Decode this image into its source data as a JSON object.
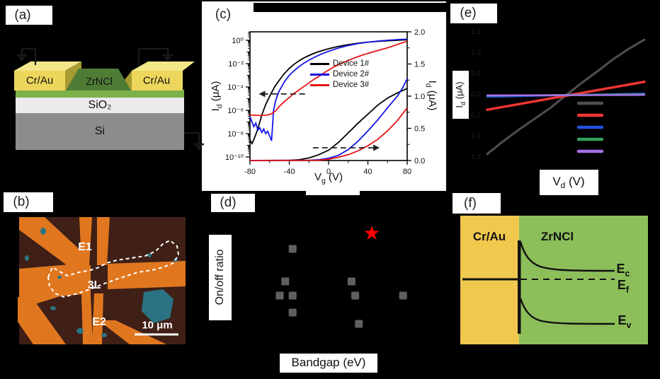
{
  "panels": {
    "a": {
      "label": "(a)",
      "schematic": {
        "electrode_label": "Cr/Au",
        "channel_label": "ZrNCl",
        "oxide_label": "SiO₂",
        "substrate_label": "Si",
        "colors": {
          "electrode_front": "#edd65c",
          "electrode_top": "#f2e88a",
          "electrode_side": "#a89b31",
          "channel": "#4f7c34",
          "film": "#7db149",
          "oxide": "#ebebeb",
          "substrate": "#8c8c8c"
        }
      }
    },
    "b": {
      "label": "(b)",
      "micrograph": {
        "electrode1_label": "E1",
        "flake_label": "3L",
        "electrode2_label": "E2",
        "scalebar_label": "10 μm",
        "colors": {
          "background": "#3f1f16",
          "electrode": "#e0771f",
          "flake": "#2b7383",
          "outline": "#ffffff"
        }
      }
    },
    "c": {
      "label": "(c)",
      "ylabel": {
        "main": "I",
        "sub": "d",
        "unit": " (μA)"
      },
      "ylabel_right": {
        "main": "I",
        "sub": "d",
        "unit": " (μA)"
      },
      "xlabel": {
        "main": "V",
        "sub": "g",
        "unit": " (V)"
      }
    },
    "d": {
      "label": "(d)",
      "ylabel": "On/off ratio",
      "xlabel": "Bandgap (eV)"
    },
    "e": {
      "label": "(e)",
      "ylabel": {
        "main": "I",
        "sub": "d",
        "unit": " (μA)"
      },
      "xlabel": {
        "main": "V",
        "sub": "d",
        "unit": " (V)"
      }
    },
    "f": {
      "label": "(f)",
      "metal_label": "Cr/Au",
      "semiconductor_label": "ZrNCl",
      "bands": {
        "conduction": {
          "main": "E",
          "sub": "c"
        },
        "fermi": {
          "main": "E",
          "sub": "f"
        },
        "valence": {
          "main": "E",
          "sub": "v"
        }
      },
      "colors": {
        "metal": "#f0c84e",
        "semiconductor": "#8cbe5a"
      }
    }
  },
  "chart_data": [
    {
      "id": "transfer-curves",
      "panel": "c",
      "type": "line",
      "xlabel": "V_g (V)",
      "xlim": [
        -80,
        80
      ],
      "axes": {
        "x": {
          "ticks": [
            "-80",
            "-40",
            "0",
            "40",
            "80"
          ],
          "tick_values": [
            -80,
            -40,
            0,
            40,
            80
          ],
          "minor_values": [
            -60,
            -20,
            20,
            60
          ]
        },
        "left": {
          "label": "I_d (μA), log scale",
          "ticks": [
            "10⁰",
            "10⁻²",
            "10⁻⁴",
            "10⁻⁶",
            "10⁻⁸",
            "10⁻¹⁰"
          ],
          "tick_values": [
            0,
            -2,
            -4,
            -6,
            -8,
            -10
          ],
          "lim_log10": [
            -10,
            0.8
          ]
        },
        "right": {
          "label": "I_d (μA), linear scale",
          "ticks": [
            "2.0",
            "1.5",
            "1.0",
            "0.5",
            "0.0"
          ],
          "tick_values": [
            2.0,
            1.5,
            1.0,
            0.5,
            0.0
          ],
          "lim": [
            0,
            2
          ]
        }
      },
      "legend": [
        {
          "label": "Device 1#",
          "color": "#000000"
        },
        {
          "label": "Device 2#",
          "color": "#1414e6"
        },
        {
          "label": "Device 3#",
          "color": "#e61414"
        }
      ],
      "series_log10": [
        {
          "name": "Device 1#",
          "color": "#000000",
          "points": [
            [
              -80,
              -8.55
            ],
            [
              -78,
              -8.85
            ],
            [
              -76,
              -8.5
            ],
            [
              -72,
              -7.6
            ],
            [
              -68,
              -6.4
            ],
            [
              -64,
              -5.5
            ],
            [
              -60,
              -4.8
            ],
            [
              -55,
              -4.0
            ],
            [
              -50,
              -3.4
            ],
            [
              -45,
              -2.85
            ],
            [
              -40,
              -2.4
            ],
            [
              -35,
              -2.05
            ],
            [
              -30,
              -1.75
            ],
            [
              -25,
              -1.5
            ],
            [
              -20,
              -1.3
            ],
            [
              -15,
              -1.12
            ],
            [
              -10,
              -0.97
            ],
            [
              -5,
              -0.84
            ],
            [
              0,
              -0.72
            ],
            [
              10,
              -0.52
            ],
            [
              20,
              -0.37
            ],
            [
              30,
              -0.25
            ],
            [
              40,
              -0.16
            ],
            [
              50,
              -0.09
            ],
            [
              60,
              -0.04
            ],
            [
              70,
              0.0
            ],
            [
              80,
              0.05
            ]
          ]
        },
        {
          "name": "Device 2#",
          "color": "#1414e6",
          "points": [
            [
              -80,
              -6.55
            ],
            [
              -78,
              -7.0
            ],
            [
              -76,
              -7.4
            ],
            [
              -74,
              -7.1
            ],
            [
              -72,
              -7.7
            ],
            [
              -70,
              -7.5
            ],
            [
              -68,
              -7.9
            ],
            [
              -66,
              -7.6
            ],
            [
              -64,
              -8.0
            ],
            [
              -62,
              -7.8
            ],
            [
              -60,
              -8.2
            ],
            [
              -58,
              -8.6
            ],
            [
              -57,
              -7.3
            ],
            [
              -56,
              -6.0
            ],
            [
              -54,
              -5.2
            ],
            [
              -52,
              -4.7
            ],
            [
              -50,
              -4.3
            ],
            [
              -45,
              -3.55
            ],
            [
              -40,
              -3.0
            ],
            [
              -35,
              -2.6
            ],
            [
              -30,
              -2.25
            ],
            [
              -25,
              -1.95
            ],
            [
              -20,
              -1.7
            ],
            [
              -15,
              -1.48
            ],
            [
              -10,
              -1.28
            ],
            [
              -5,
              -1.1
            ],
            [
              0,
              -0.94
            ],
            [
              10,
              -0.66
            ],
            [
              20,
              -0.45
            ],
            [
              30,
              -0.28
            ],
            [
              40,
              -0.16
            ],
            [
              50,
              -0.07
            ],
            [
              60,
              0.0
            ],
            [
              70,
              0.06
            ],
            [
              80,
              0.1
            ]
          ]
        },
        {
          "name": "Device 3#",
          "color": "#e61414",
          "points": [
            [
              -80,
              -6.4
            ],
            [
              -70,
              -6.45
            ],
            [
              -62,
              -6.4
            ],
            [
              -58,
              -6.3
            ],
            [
              -54,
              -6.05
            ],
            [
              -50,
              -5.65
            ],
            [
              -45,
              -5.25
            ],
            [
              -40,
              -4.9
            ],
            [
              -35,
              -4.55
            ],
            [
              -30,
              -4.25
            ],
            [
              -25,
              -3.95
            ],
            [
              -20,
              -3.65
            ],
            [
              -15,
              -3.35
            ],
            [
              -10,
              -3.1
            ],
            [
              -5,
              -2.8
            ],
            [
              0,
              -2.55
            ],
            [
              5,
              -2.3
            ],
            [
              10,
              -2.1
            ],
            [
              15,
              -1.9
            ],
            [
              20,
              -1.72
            ],
            [
              25,
              -1.55
            ],
            [
              30,
              -1.4
            ],
            [
              35,
              -1.25
            ],
            [
              40,
              -1.12
            ],
            [
              45,
              -1.0
            ],
            [
              50,
              -0.88
            ],
            [
              55,
              -0.76
            ],
            [
              60,
              -0.64
            ],
            [
              65,
              -0.5
            ],
            [
              70,
              -0.36
            ],
            [
              75,
              -0.22
            ],
            [
              80,
              -0.08
            ]
          ]
        }
      ],
      "series_linear": [
        {
          "name": "Device 1#",
          "color": "#000000",
          "points": [
            [
              -80,
              0
            ],
            [
              -40,
              0.004
            ],
            [
              -30,
              0.012
            ],
            [
              -20,
              0.04
            ],
            [
              -10,
              0.09
            ],
            [
              0,
              0.16
            ],
            [
              10,
              0.28
            ],
            [
              20,
              0.43
            ],
            [
              30,
              0.58
            ],
            [
              40,
              0.72
            ],
            [
              50,
              0.86
            ],
            [
              60,
              0.97
            ],
            [
              70,
              1.05
            ],
            [
              80,
              1.12
            ]
          ]
        },
        {
          "name": "Device 2#",
          "color": "#1414e6",
          "points": [
            [
              -80,
              0
            ],
            [
              -20,
              0.003
            ],
            [
              -10,
              0.012
            ],
            [
              0,
              0.035
            ],
            [
              10,
              0.08
            ],
            [
              20,
              0.17
            ],
            [
              30,
              0.3
            ],
            [
              40,
              0.46
            ],
            [
              50,
              0.63
            ],
            [
              60,
              0.82
            ],
            [
              70,
              1.0
            ],
            [
              75,
              1.12
            ],
            [
              80,
              1.27
            ]
          ]
        },
        {
          "name": "Device 3#",
          "color": "#e61414",
          "points": [
            [
              -80,
              0
            ],
            [
              -10,
              0.004
            ],
            [
              0,
              0.02
            ],
            [
              10,
              0.05
            ],
            [
              20,
              0.09
            ],
            [
              30,
              0.15
            ],
            [
              40,
              0.23
            ],
            [
              50,
              0.33
            ],
            [
              60,
              0.46
            ],
            [
              70,
              0.62
            ],
            [
              80,
              0.82
            ]
          ]
        }
      ],
      "annotations": {
        "left_arrow": {
          "y_log10": -4.6,
          "x_from": -24,
          "x_to": -71
        },
        "right_arrow": {
          "y_linear": 0.198,
          "x_from": -16,
          "x_to": 52
        }
      }
    },
    {
      "id": "onoff-vs-bandgap",
      "panel": "d",
      "type": "scatter",
      "xlabel": "Bandgap (eV)",
      "ylabel": "On/off ratio",
      "note": "axis tick labels not visible against black background",
      "point_color": "#606060",
      "points_rel": [
        [
          0.32,
          0.26
        ],
        [
          0.28,
          0.49
        ],
        [
          0.25,
          0.59
        ],
        [
          0.32,
          0.59
        ],
        [
          0.32,
          0.71
        ],
        [
          0.64,
          0.49
        ],
        [
          0.66,
          0.59
        ],
        [
          0.68,
          0.79
        ],
        [
          0.92,
          0.59
        ]
      ],
      "star_rel": [
        0.75,
        0.15
      ],
      "star_color": "#ff0000"
    },
    {
      "id": "output-curves",
      "panel": "e",
      "type": "line",
      "xlabel": "V_d (V)",
      "ylabel": "I_d (μA)",
      "yticks_faint": [
        "1.5",
        "1.0",
        "0.5",
        "0.0",
        "-0.5",
        "-1.0",
        "-1.5"
      ],
      "series": [
        {
          "color": "#4f4f4f",
          "width": 3,
          "points": [
            [
              0,
              -1.42
            ],
            [
              0.1,
              -1.12
            ],
            [
              0.2,
              -0.84
            ],
            [
              0.3,
              -0.58
            ],
            [
              0.4,
              -0.32
            ],
            [
              0.505,
              0
            ],
            [
              0.6,
              0.28
            ],
            [
              0.7,
              0.56
            ],
            [
              0.8,
              0.85
            ],
            [
              0.9,
              1.1
            ],
            [
              1,
              1.32
            ]
          ]
        },
        {
          "color": "#ef3535",
          "width": 3.5,
          "points": [
            [
              0,
              -0.36
            ],
            [
              1,
              0.31
            ]
          ]
        },
        {
          "color": "#2450e0",
          "width": 2.5,
          "points": [
            [
              0,
              -0.05
            ],
            [
              1,
              0.03
            ]
          ]
        },
        {
          "color": "#2fa05a",
          "width": 2.5,
          "points": [
            [
              0,
              -0.02
            ],
            [
              1,
              0.01
            ]
          ]
        },
        {
          "color": "#a671e8",
          "width": 2.5,
          "points": [
            [
              0,
              -0.015
            ],
            [
              1,
              -0.005
            ]
          ]
        }
      ],
      "legend_colors": [
        "#4f4f4f",
        "#ef3535",
        "#2450e0",
        "#2fa05a",
        "#a671e8"
      ]
    }
  ]
}
